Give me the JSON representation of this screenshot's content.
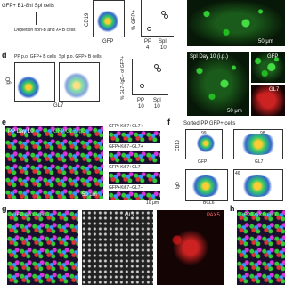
{
  "panel_c": {
    "source": "GFP+ B1-8hi Spl cells",
    "step": "Depletion non-B and λ+ B cells",
    "flow_y": "CD19",
    "flow_x": "GFP",
    "plot_y": "% GFP+",
    "plot_x": [
      "PP",
      "Spl"
    ],
    "plot_days": [
      "4",
      "10"
    ],
    "scale": "50 μm"
  },
  "panel_d": {
    "letter": "d",
    "plot1_title": "PP p.o. GFP+ B cells",
    "plot2_title": "Spl p.o. GFP+ B cells",
    "y_label": "IgD",
    "x_label": "GL7",
    "plot_y": "% GL7+IgD− of GFP+",
    "plot_x": [
      "PP",
      "Spl"
    ],
    "plot_days": [
      "10",
      "10"
    ],
    "image_title": "Spl Day 10 (i.p.)",
    "channels": [
      "GFP",
      "GL7"
    ],
    "scale": "50 μm"
  },
  "panel_e": {
    "letter": "e",
    "image_title": "PP Day 10",
    "stain": "GFP/GL7/IgD",
    "tiles": [
      "GFP+Ki67+GL7+",
      "GFP+Ki67−GL7+",
      "GFP+Ki67+GL7−",
      "GFP+Ki67−GL7−"
    ],
    "scale_small": "10 μm",
    "scale_big": "50 μm"
  },
  "panel_f": {
    "letter": "f",
    "title": "Sorted PP GFP+ cells",
    "gate_values": [
      "99",
      "98",
      "46"
    ],
    "axes": [
      "CD19",
      "GFP",
      "GL7",
      "IgD",
      "BCL6"
    ]
  },
  "panel_g": {
    "letter": "g",
    "labels": [
      "GFP/PAX5/GL7",
      "GL7",
      "PAX5"
    ]
  },
  "panel_h": {
    "letter": "h",
    "label": "GFP/PAX5/GL7"
  }
}
